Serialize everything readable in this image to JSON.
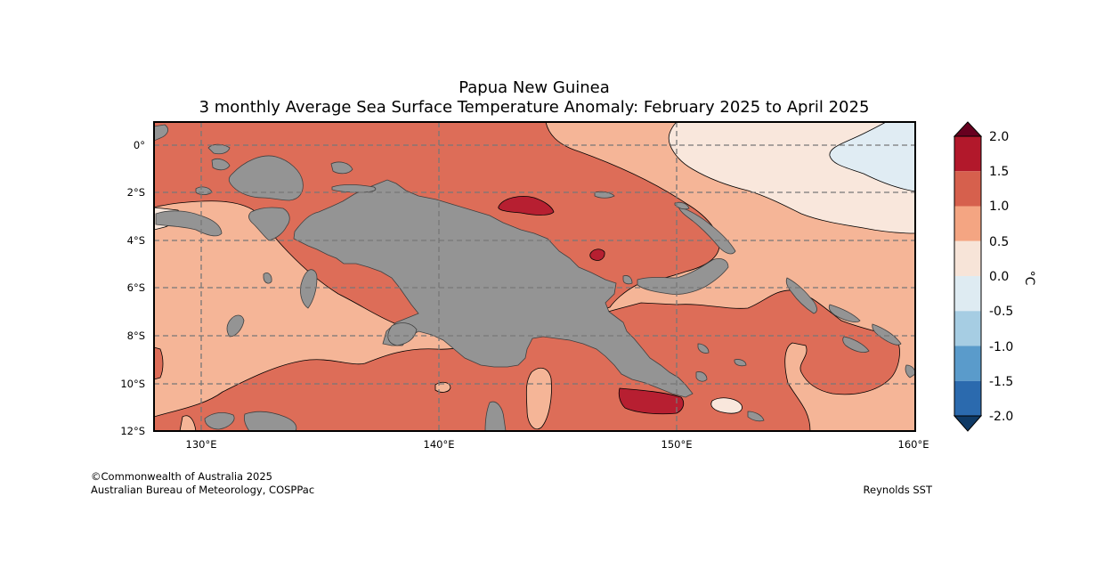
{
  "title": {
    "line1": "Papua New Guinea",
    "line2": "3 monthly Average Sea Surface Temperature Anomaly: February 2025 to April 2025"
  },
  "axes": {
    "lat_labels": [
      "0°",
      "2°S",
      "4°S",
      "6°S",
      "8°S",
      "10°S",
      "12°S"
    ],
    "lon_labels": [
      "130°E",
      "140°E",
      "150°E",
      "160°E"
    ]
  },
  "colorbar": {
    "unit_label": "°C",
    "ticks": [
      "2.0",
      "1.5",
      "1.0",
      "0.5",
      "0.0",
      "-0.5",
      "-1.0",
      "-1.5",
      "-2.0"
    ],
    "levels": [
      {
        "range": "1.5 to 2.0",
        "color": "#b2182b"
      },
      {
        "range": "1.0 to 1.5",
        "color": "#d6604d"
      },
      {
        "range": "0.5 to 1.0",
        "color": "#f4a582"
      },
      {
        "range": "0.0 to 0.5",
        "color": "#f7e4d8"
      },
      {
        "range": "-0.5 to 0.0",
        "color": "#deebf2"
      },
      {
        "range": "-1.0 to -0.5",
        "color": "#a6cde3"
      },
      {
        "range": "-1.5 to -1.0",
        "color": "#5a9bcb"
      },
      {
        "range": "-2.0 to -1.5",
        "color": "#2b6aae"
      }
    ],
    "over_color": "#67001f",
    "under_color": "#0f3a66"
  },
  "colors": {
    "land": "#949494",
    "anomaly_1_0_to_1_5": "#dd6d58",
    "anomaly_0_5_to_1_0": "#f5b597",
    "anomaly_0_0_to_0_5": "#f9e7dc",
    "anomaly_neg_0_5_to_0_0": "#e0ecf3",
    "anomaly_1_5_to_2_0": "#b71f31"
  },
  "footer": {
    "credit_line1": "©Commonwealth of Australia 2025",
    "credit_line2": "Australian Bureau of Meteorology, COSPPac",
    "source": "Reynolds SST"
  }
}
